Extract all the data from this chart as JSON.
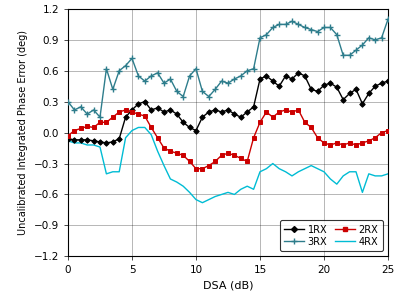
{
  "xlabel": "DSA (dB)",
  "ylabel": "Uncalibrated Integrated Phase Error (deg)",
  "xlim": [
    0,
    25
  ],
  "ylim": [
    -1.2,
    1.2
  ],
  "xticks": [
    0,
    5,
    10,
    15,
    20,
    25
  ],
  "yticks": [
    -1.2,
    -0.9,
    -0.6,
    -0.3,
    0.0,
    0.3,
    0.6,
    0.9,
    1.2
  ],
  "rx1_x": [
    0,
    0.5,
    1,
    1.5,
    2,
    2.5,
    3,
    3.5,
    4,
    4.5,
    5,
    5.5,
    6,
    6.5,
    7,
    7.5,
    8,
    8.5,
    9,
    9.5,
    10,
    10.5,
    11,
    11.5,
    12,
    12.5,
    13,
    13.5,
    14,
    14.5,
    15,
    15.5,
    16,
    16.5,
    17,
    17.5,
    18,
    18.5,
    19,
    19.5,
    20,
    20.5,
    21,
    21.5,
    22,
    22.5,
    23,
    23.5,
    24,
    24.5,
    25
  ],
  "rx1_y": [
    -0.06,
    -0.07,
    -0.07,
    -0.07,
    -0.08,
    -0.09,
    -0.1,
    -0.09,
    -0.06,
    0.15,
    0.22,
    0.28,
    0.3,
    0.22,
    0.24,
    0.2,
    0.22,
    0.18,
    0.1,
    0.05,
    0.02,
    0.15,
    0.2,
    0.22,
    0.2,
    0.22,
    0.18,
    0.15,
    0.2,
    0.25,
    0.52,
    0.55,
    0.5,
    0.45,
    0.55,
    0.52,
    0.58,
    0.55,
    0.42,
    0.4,
    0.46,
    0.48,
    0.44,
    0.32,
    0.38,
    0.42,
    0.28,
    0.38,
    0.45,
    0.48,
    0.5
  ],
  "rx2_x": [
    0,
    0.5,
    1,
    1.5,
    2,
    2.5,
    3,
    3.5,
    4,
    4.5,
    5,
    5.5,
    6,
    6.5,
    7,
    7.5,
    8,
    8.5,
    9,
    9.5,
    10,
    10.5,
    11,
    11.5,
    12,
    12.5,
    13,
    13.5,
    14,
    14.5,
    15,
    15.5,
    16,
    16.5,
    17,
    17.5,
    18,
    18.5,
    19,
    19.5,
    20,
    20.5,
    21,
    21.5,
    22,
    22.5,
    23,
    23.5,
    24,
    24.5,
    25
  ],
  "rx2_y": [
    -0.03,
    0.02,
    0.04,
    0.06,
    0.05,
    0.1,
    0.1,
    0.15,
    0.2,
    0.22,
    0.2,
    0.18,
    0.16,
    0.05,
    -0.05,
    -0.15,
    -0.18,
    -0.2,
    -0.22,
    -0.28,
    -0.35,
    -0.35,
    -0.32,
    -0.28,
    -0.22,
    -0.2,
    -0.22,
    -0.25,
    -0.28,
    -0.05,
    0.1,
    0.2,
    0.15,
    0.2,
    0.22,
    0.2,
    0.22,
    0.1,
    0.05,
    -0.05,
    -0.1,
    -0.12,
    -0.1,
    -0.12,
    -0.1,
    -0.12,
    -0.1,
    -0.08,
    -0.05,
    0.0,
    0.02
  ],
  "rx3_x": [
    0,
    0.5,
    1,
    1.5,
    2,
    2.5,
    3,
    3.5,
    4,
    4.5,
    5,
    5.5,
    6,
    6.5,
    7,
    7.5,
    8,
    8.5,
    9,
    9.5,
    10,
    10.5,
    11,
    11.5,
    12,
    12.5,
    13,
    13.5,
    14,
    14.5,
    15,
    15.5,
    16,
    16.5,
    17,
    17.5,
    18,
    18.5,
    19,
    19.5,
    20,
    20.5,
    21,
    21.5,
    22,
    22.5,
    23,
    23.5,
    24,
    24.5,
    25
  ],
  "rx3_y": [
    0.3,
    0.22,
    0.25,
    0.18,
    0.22,
    0.15,
    0.62,
    0.42,
    0.6,
    0.65,
    0.72,
    0.55,
    0.5,
    0.55,
    0.58,
    0.48,
    0.52,
    0.4,
    0.35,
    0.55,
    0.62,
    0.4,
    0.35,
    0.42,
    0.5,
    0.48,
    0.52,
    0.55,
    0.6,
    0.62,
    0.92,
    0.95,
    1.02,
    1.05,
    1.05,
    1.08,
    1.05,
    1.02,
    1.0,
    0.98,
    1.02,
    1.02,
    0.95,
    0.75,
    0.75,
    0.8,
    0.85,
    0.92,
    0.9,
    0.92,
    1.1
  ],
  "rx4_x": [
    0,
    0.5,
    1,
    1.5,
    2,
    2.5,
    3,
    3.5,
    4,
    4.5,
    5,
    5.5,
    6,
    6.5,
    7,
    7.5,
    8,
    8.5,
    9,
    9.5,
    10,
    10.5,
    11,
    11.5,
    12,
    12.5,
    13,
    13.5,
    14,
    14.5,
    15,
    15.5,
    16,
    16.5,
    17,
    17.5,
    18,
    18.5,
    19,
    19.5,
    20,
    20.5,
    21,
    21.5,
    22,
    22.5,
    23,
    23.5,
    24,
    24.5,
    25
  ],
  "rx4_y": [
    -0.08,
    -0.1,
    -0.1,
    -0.12,
    -0.12,
    -0.14,
    -0.4,
    -0.38,
    -0.38,
    -0.05,
    0.02,
    0.05,
    0.05,
    -0.02,
    -0.18,
    -0.32,
    -0.45,
    -0.48,
    -0.52,
    -0.58,
    -0.65,
    -0.68,
    -0.65,
    -0.62,
    -0.6,
    -0.58,
    -0.6,
    -0.55,
    -0.52,
    -0.55,
    -0.38,
    -0.35,
    -0.3,
    -0.35,
    -0.38,
    -0.42,
    -0.38,
    -0.35,
    -0.32,
    -0.35,
    -0.38,
    -0.45,
    -0.5,
    -0.42,
    -0.38,
    -0.38,
    -0.58,
    -0.4,
    -0.42,
    -0.42,
    -0.4
  ],
  "color_rx1": "#000000",
  "color_rx2": "#cc0000",
  "color_rx3": "#2e7d8c",
  "color_rx4": "#00bcd4"
}
